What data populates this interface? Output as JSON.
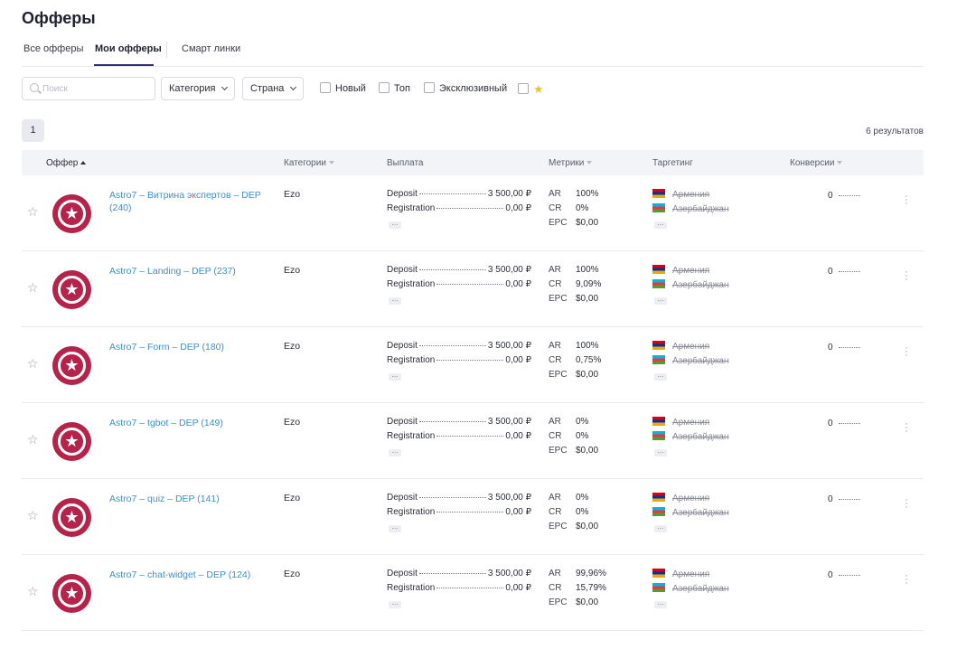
{
  "page": {
    "title": "Офферы"
  },
  "tabs": [
    {
      "label": "Все офферы"
    },
    {
      "label": "Мои офферы"
    },
    {
      "label": "Смарт линки"
    }
  ],
  "filters": {
    "search_placeholder": "Поиск",
    "category_label": "Категория",
    "country_label": "Страна",
    "checkboxes": [
      {
        "label": "Новый"
      },
      {
        "label": "Топ"
      },
      {
        "label": "Эксклюзивный"
      }
    ],
    "favorite_icon": "star-icon"
  },
  "pagination": {
    "current_page": "1",
    "results_text": "6  результатов"
  },
  "table": {
    "headers": {
      "offer": "Оффер",
      "categories": "Категории",
      "payout": "Выплата",
      "metrics": "Метрики",
      "targeting": "Таргетинг",
      "conversions": "Конверсии"
    },
    "more_label": "...",
    "rows": [
      {
        "name": "Astro7 – Витрина экспертов – DEP (240)",
        "category": "Ezo",
        "payouts": [
          {
            "label": "Deposit",
            "value": "3 500,00 ₽"
          },
          {
            "label": "Registration",
            "value": "0,00 ₽"
          }
        ],
        "metrics": [
          {
            "k": "AR",
            "v": "100%"
          },
          {
            "k": "CR",
            "v": "0%"
          },
          {
            "k": "EPC",
            "v": "$0,00"
          }
        ],
        "countries": [
          "Армения",
          "Азербайджан"
        ],
        "conversions": "0"
      },
      {
        "name": "Astro7 – Landing – DEP (237)",
        "category": "Ezo",
        "payouts": [
          {
            "label": "Deposit",
            "value": "3 500,00 ₽"
          },
          {
            "label": "Registration",
            "value": "0,00 ₽"
          }
        ],
        "metrics": [
          {
            "k": "AR",
            "v": "100%"
          },
          {
            "k": "CR",
            "v": "9,09%"
          },
          {
            "k": "EPC",
            "v": "$0,00"
          }
        ],
        "countries": [
          "Армения",
          "Азербайджан"
        ],
        "conversions": "0"
      },
      {
        "name": "Astro7 – Form – DEP (180)",
        "category": "Ezo",
        "payouts": [
          {
            "label": "Deposit",
            "value": "3 500,00 ₽"
          },
          {
            "label": "Registration",
            "value": "0,00 ₽"
          }
        ],
        "metrics": [
          {
            "k": "AR",
            "v": "100%"
          },
          {
            "k": "CR",
            "v": "0,75%"
          },
          {
            "k": "EPC",
            "v": "$0,00"
          }
        ],
        "countries": [
          "Армения",
          "Азербайджан"
        ],
        "conversions": "0"
      },
      {
        "name": "Astro7 – tgbot – DEP (149)",
        "category": "Ezo",
        "payouts": [
          {
            "label": "Deposit",
            "value": "3 500,00 ₽"
          },
          {
            "label": "Registration",
            "value": "0,00 ₽"
          }
        ],
        "metrics": [
          {
            "k": "AR",
            "v": "0%"
          },
          {
            "k": "CR",
            "v": "0%"
          },
          {
            "k": "EPC",
            "v": "$0,00"
          }
        ],
        "countries": [
          "Армения",
          "Азербайджан"
        ],
        "conversions": "0"
      },
      {
        "name": "Astro7 – quiz – DEP (141)",
        "category": "Ezo",
        "payouts": [
          {
            "label": "Deposit",
            "value": "3 500,00 ₽"
          },
          {
            "label": "Registration",
            "value": "0,00 ₽"
          }
        ],
        "metrics": [
          {
            "k": "AR",
            "v": "0%"
          },
          {
            "k": "CR",
            "v": "0%"
          },
          {
            "k": "EPC",
            "v": "$0,00"
          }
        ],
        "countries": [
          "Армения",
          "Азербайджан"
        ],
        "conversions": "0"
      },
      {
        "name": "Astro7 – chat-widget – DEP (124)",
        "category": "Ezo",
        "payouts": [
          {
            "label": "Deposit",
            "value": "3 500,00 ₽"
          },
          {
            "label": "Registration",
            "value": "0,00 ₽"
          }
        ],
        "metrics": [
          {
            "k": "AR",
            "v": "99,96%"
          },
          {
            "k": "CR",
            "v": "15,79%"
          },
          {
            "k": "EPC",
            "v": "$0,00"
          }
        ],
        "countries": [
          "Армения",
          "Азербайджан"
        ],
        "conversions": "0"
      }
    ]
  },
  "colors": {
    "link": "#3c8fd1",
    "logo": "#b5224a",
    "active_tab": "#2e2b7a",
    "favorite_star": "#f2c32e"
  }
}
